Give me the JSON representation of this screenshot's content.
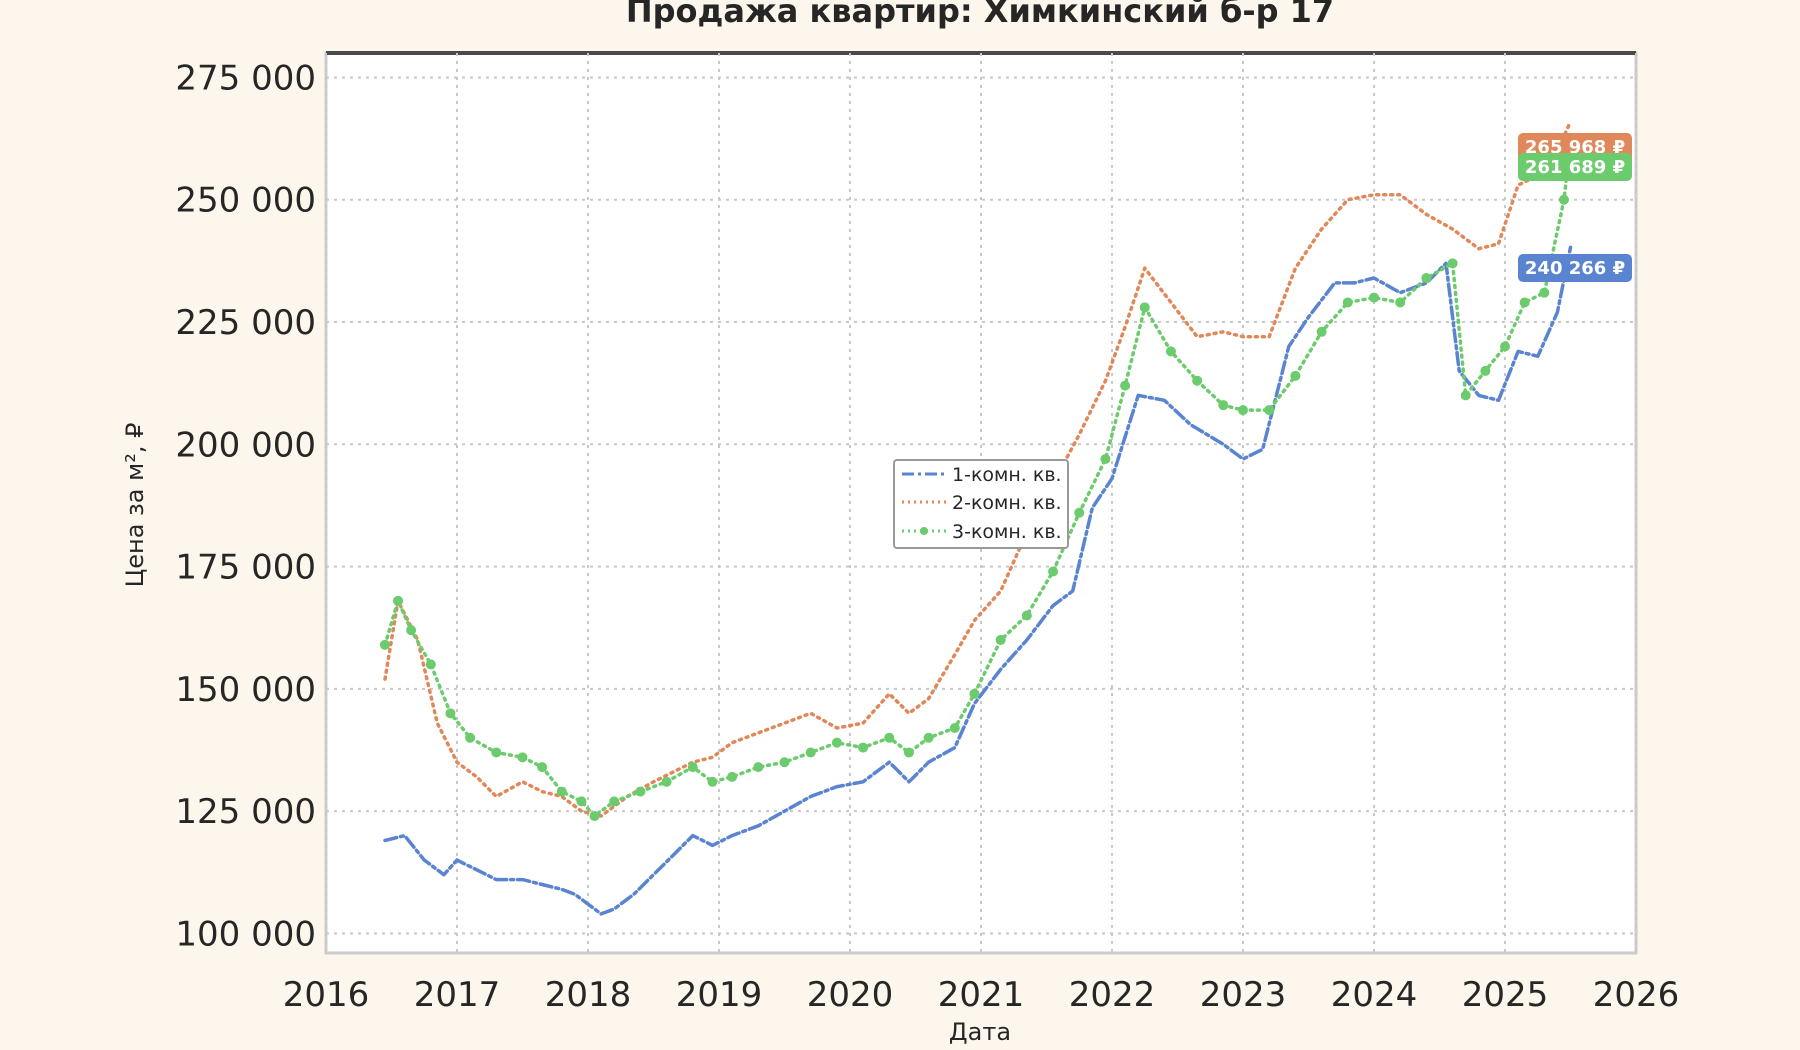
{
  "chart_data": {
    "type": "line",
    "title": "Продажа квартир: Химкинский б-р 17",
    "xlabel": "Дата",
    "ylabel": "Цена за м², ₽",
    "xlim": [
      2016,
      2026
    ],
    "ylim": [
      96000,
      280000
    ],
    "x_ticks": [
      "2016",
      "2017",
      "2018",
      "2019",
      "2020",
      "2021",
      "2022",
      "2023",
      "2024",
      "2025",
      "2026"
    ],
    "y_ticks": [
      "100 000",
      "125 000",
      "150 000",
      "175 000",
      "200 000",
      "225 000",
      "250 000",
      "275 000"
    ],
    "y_tick_values": [
      100000,
      125000,
      150000,
      175000,
      200000,
      225000,
      250000,
      275000
    ],
    "grid": true,
    "legend_position": "center",
    "series": [
      {
        "name": "1-комн. кв.",
        "color": "#5b84d0",
        "style": "dashdot",
        "x": [
          2016.45,
          2016.6,
          2016.75,
          2016.9,
          2017.0,
          2017.15,
          2017.3,
          2017.5,
          2017.65,
          2017.8,
          2017.9,
          2018.0,
          2018.1,
          2018.2,
          2018.35,
          2018.5,
          2018.65,
          2018.8,
          2018.95,
          2019.1,
          2019.3,
          2019.5,
          2019.7,
          2019.9,
          2020.1,
          2020.3,
          2020.45,
          2020.6,
          2020.8,
          2020.95,
          2021.15,
          2021.35,
          2021.55,
          2021.7,
          2021.85,
          2022.0,
          2022.2,
          2022.4,
          2022.6,
          2022.85,
          2023.0,
          2023.15,
          2023.35,
          2023.5,
          2023.7,
          2023.85,
          2024.0,
          2024.2,
          2024.4,
          2024.55,
          2024.65,
          2024.8,
          2024.95,
          2025.1,
          2025.25,
          2025.4,
          2025.5
        ],
        "values": [
          119000,
          120000,
          115000,
          112000,
          115000,
          113000,
          111000,
          111000,
          110000,
          109000,
          108000,
          106000,
          104000,
          105000,
          108000,
          112000,
          116000,
          120000,
          118000,
          120000,
          122000,
          125000,
          128000,
          130000,
          131000,
          135000,
          131000,
          135000,
          138000,
          147000,
          154000,
          160000,
          167000,
          170000,
          187000,
          193000,
          210000,
          209000,
          204000,
          200000,
          197000,
          199000,
          220000,
          226000,
          233000,
          233000,
          234000,
          231000,
          233000,
          237000,
          215000,
          210000,
          209000,
          219000,
          218000,
          227000,
          240266
        ]
      },
      {
        "name": "2-комн. кв.",
        "color": "#e0885a",
        "style": "dotted",
        "x": [
          2016.45,
          2016.55,
          2016.7,
          2016.85,
          2017.0,
          2017.15,
          2017.3,
          2017.5,
          2017.65,
          2017.8,
          2017.95,
          2018.1,
          2018.3,
          2018.5,
          2018.65,
          2018.8,
          2018.95,
          2019.1,
          2019.3,
          2019.5,
          2019.7,
          2019.9,
          2020.1,
          2020.3,
          2020.45,
          2020.6,
          2020.8,
          2020.95,
          2021.15,
          2021.35,
          2021.55,
          2021.75,
          2021.95,
          2022.1,
          2022.25,
          2022.45,
          2022.65,
          2022.85,
          2023.0,
          2023.2,
          2023.4,
          2023.6,
          2023.8,
          2024.0,
          2024.2,
          2024.4,
          2024.6,
          2024.8,
          2024.95,
          2025.1,
          2025.25,
          2025.4,
          2025.5
        ],
        "values": [
          152000,
          168000,
          160000,
          143000,
          135000,
          132000,
          128000,
          131000,
          129000,
          128000,
          125000,
          124000,
          128000,
          131000,
          133000,
          135000,
          136000,
          139000,
          141000,
          143000,
          145000,
          142000,
          143000,
          149000,
          145000,
          148000,
          157000,
          164000,
          170000,
          182000,
          192000,
          202000,
          213000,
          224000,
          236000,
          229000,
          222000,
          223000,
          222000,
          222000,
          236000,
          244000,
          250000,
          251000,
          251000,
          247000,
          244000,
          240000,
          241000,
          253000,
          255000,
          260000,
          265968
        ]
      },
      {
        "name": "3-комн. кв.",
        "color": "#6ccb6c",
        "style": "dotted-marker",
        "x": [
          2016.45,
          2016.55,
          2016.65,
          2016.8,
          2016.95,
          2017.1,
          2017.3,
          2017.5,
          2017.65,
          2017.8,
          2017.95,
          2018.05,
          2018.2,
          2018.4,
          2018.6,
          2018.8,
          2018.95,
          2019.1,
          2019.3,
          2019.5,
          2019.7,
          2019.9,
          2020.1,
          2020.3,
          2020.45,
          2020.6,
          2020.8,
          2020.95,
          2021.15,
          2021.35,
          2021.55,
          2021.75,
          2021.95,
          2022.1,
          2022.25,
          2022.45,
          2022.65,
          2022.85,
          2023.0,
          2023.2,
          2023.4,
          2023.6,
          2023.8,
          2024.0,
          2024.2,
          2024.4,
          2024.6,
          2024.7,
          2024.85,
          2025.0,
          2025.15,
          2025.3,
          2025.45,
          2025.5
        ],
        "values": [
          159000,
          168000,
          162000,
          155000,
          145000,
          140000,
          137000,
          136000,
          134000,
          129000,
          127000,
          124000,
          127000,
          129000,
          131000,
          134000,
          131000,
          132000,
          134000,
          135000,
          137000,
          139000,
          138000,
          140000,
          137000,
          140000,
          142000,
          149000,
          160000,
          165000,
          174000,
          186000,
          197000,
          212000,
          228000,
          219000,
          213000,
          208000,
          207000,
          207000,
          214000,
          223000,
          229000,
          230000,
          229000,
          234000,
          237000,
          210000,
          215000,
          220000,
          229000,
          231000,
          250000,
          261689
        ]
      }
    ],
    "last_value_labels": [
      "265 968 ₽",
      "261 689 ₽",
      "240 266 ₽"
    ]
  }
}
